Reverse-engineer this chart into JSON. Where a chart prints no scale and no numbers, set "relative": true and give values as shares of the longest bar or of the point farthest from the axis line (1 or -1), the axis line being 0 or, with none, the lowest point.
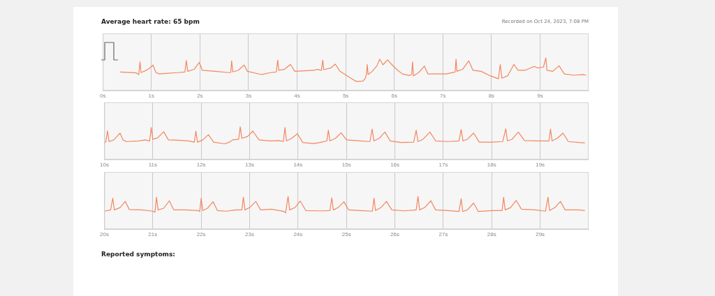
{
  "chart_data": [
    {
      "type": "line",
      "title": "Average heart rate: 65 bpm",
      "annotations": [
        "Recorded on Oct 24, 2023, 7:08 PM"
      ],
      "relative": true,
      "grid": "x",
      "color": "#f4865f",
      "xlim": [
        0,
        10
      ],
      "xticks": [
        {
          "value": 0,
          "label": "0s"
        },
        {
          "value": 1,
          "label": "1s"
        },
        {
          "value": 2,
          "label": "2s"
        },
        {
          "value": 3,
          "label": "3s"
        },
        {
          "value": 4,
          "label": "4s"
        },
        {
          "value": 5,
          "label": "5s"
        },
        {
          "value": 6,
          "label": "6s"
        },
        {
          "value": 7,
          "label": "7s"
        },
        {
          "value": 8,
          "label": "8s"
        },
        {
          "value": 9,
          "label": "9s"
        }
      ],
      "x": [
        0.357,
        0.69,
        0.74,
        0.767,
        0.786,
        0.88,
        0.967,
        1.033,
        1.095,
        1.167,
        1.357,
        1.548,
        1.69,
        1.719,
        1.748,
        1.88,
        1.986,
        2.048,
        2.31,
        2.595,
        2.633,
        2.652,
        2.676,
        2.786,
        2.91,
        2.976,
        3.262,
        3.452,
        3.571,
        3.6,
        3.624,
        3.738,
        3.862,
        3.952,
        4.357,
        4.405,
        4.5,
        4.529,
        4.548,
        4.69,
        4.786,
        4.881,
        5.071,
        5.214,
        5.357,
        5.405,
        5.429,
        5.443,
        5.462,
        5.548,
        5.643,
        5.7,
        5.767,
        5.862,
        5.952,
        6.071,
        6.167,
        6.31,
        6.357,
        6.376,
        6.395,
        6.5,
        6.619,
        6.69,
        6.833,
        7.071,
        7.252,
        7.271,
        7.29,
        7.405,
        7.533,
        7.619,
        7.786,
        7.976,
        8.143,
        8.181,
        8.214,
        8.333,
        8.462,
        8.548,
        8.69,
        8.881,
        8.952,
        9.071,
        9.119,
        9.143,
        9.262,
        9.39,
        9.5,
        9.69,
        9.881,
        9.952
      ],
      "values": [
        0.57,
        0.54,
        0.49,
        0.88,
        0.55,
        0.61,
        0.69,
        0.78,
        0.55,
        0.51,
        0.53,
        0.55,
        0.57,
        0.92,
        0.59,
        0.65,
        0.86,
        0.62,
        0.59,
        0.55,
        0.55,
        0.91,
        0.57,
        0.62,
        0.78,
        0.59,
        0.49,
        0.55,
        0.57,
        0.93,
        0.62,
        0.65,
        0.8,
        0.59,
        0.62,
        0.65,
        0.62,
        0.93,
        0.64,
        0.69,
        0.81,
        0.59,
        0.41,
        0.28,
        0.29,
        0.38,
        0.51,
        0.8,
        0.49,
        0.59,
        0.76,
        0.96,
        0.79,
        0.94,
        0.79,
        0.62,
        0.51,
        0.46,
        0.49,
        0.88,
        0.45,
        0.55,
        0.75,
        0.51,
        0.51,
        0.51,
        0.57,
        0.96,
        0.59,
        0.65,
        0.91,
        0.62,
        0.59,
        0.45,
        0.36,
        0.8,
        0.38,
        0.45,
        0.8,
        0.62,
        0.62,
        0.74,
        0.69,
        0.72,
        1.0,
        0.62,
        0.59,
        0.76,
        0.51,
        0.47,
        0.49,
        0.47
      ]
    },
    {
      "type": "line",
      "relative": true,
      "grid": "x",
      "color": "#f4865f",
      "xlim": [
        10,
        20
      ],
      "xticks": [
        {
          "value": 10,
          "label": "10s"
        },
        {
          "value": 11,
          "label": "11s"
        },
        {
          "value": 12,
          "label": "12s"
        },
        {
          "value": 13,
          "label": "13s"
        },
        {
          "value": 14,
          "label": "14s"
        },
        {
          "value": 15,
          "label": "15s"
        },
        {
          "value": 16,
          "label": "16s"
        },
        {
          "value": 17,
          "label": "17s"
        },
        {
          "value": 18,
          "label": "18s"
        },
        {
          "value": 19,
          "label": "19s"
        }
      ],
      "x": [
        10.0,
        10.032,
        10.065,
        10.097,
        10.194,
        10.323,
        10.387,
        10.452,
        10.71,
        10.839,
        10.935,
        10.968,
        11.0,
        11.097,
        11.226,
        11.323,
        11.548,
        11.742,
        11.858,
        11.89,
        11.923,
        12.032,
        12.148,
        12.258,
        12.484,
        12.581,
        12.645,
        12.774,
        12.806,
        12.839,
        12.955,
        13.065,
        13.194,
        13.419,
        13.613,
        13.697,
        13.729,
        13.761,
        13.871,
        13.987,
        14.097,
        14.323,
        14.452,
        14.594,
        14.626,
        14.658,
        14.774,
        14.89,
        15.0,
        15.29,
        15.484,
        15.529,
        15.568,
        15.677,
        15.794,
        15.903,
        16.129,
        16.387,
        16.439,
        16.477,
        16.581,
        16.723,
        16.839,
        17.097,
        17.323,
        17.368,
        17.406,
        17.497,
        17.626,
        17.742,
        18.0,
        18.226,
        18.29,
        18.323,
        18.419,
        18.548,
        18.677,
        18.968,
        19.181,
        19.213,
        19.245,
        19.355,
        19.471,
        19.581,
        19.806,
        19.923
      ],
      "values": [
        0.5,
        0.55,
        0.88,
        0.55,
        0.6,
        0.81,
        0.6,
        0.55,
        0.57,
        0.6,
        0.57,
        0.98,
        0.62,
        0.66,
        0.85,
        0.6,
        0.59,
        0.57,
        0.53,
        0.87,
        0.53,
        0.6,
        0.76,
        0.53,
        0.48,
        0.53,
        0.6,
        0.62,
        1.0,
        0.65,
        0.7,
        0.87,
        0.6,
        0.57,
        0.58,
        0.55,
        0.98,
        0.57,
        0.65,
        0.79,
        0.52,
        0.49,
        0.52,
        0.57,
        0.9,
        0.57,
        0.65,
        0.82,
        0.6,
        0.57,
        0.55,
        0.93,
        0.57,
        0.65,
        0.84,
        0.57,
        0.52,
        0.53,
        0.9,
        0.55,
        0.62,
        0.84,
        0.57,
        0.55,
        0.57,
        0.92,
        0.57,
        0.62,
        0.81,
        0.53,
        0.53,
        0.55,
        0.94,
        0.57,
        0.62,
        0.84,
        0.58,
        0.57,
        0.57,
        0.93,
        0.57,
        0.65,
        0.81,
        0.55,
        0.52,
        0.51
      ]
    },
    {
      "type": "line",
      "annotations": [
        "Reported symptoms:"
      ],
      "relative": true,
      "grid": "x",
      "color": "#f4865f",
      "xlim": [
        20,
        30
      ],
      "xticks": [
        {
          "value": 20,
          "label": "20s"
        },
        {
          "value": 21,
          "label": "21s"
        },
        {
          "value": 22,
          "label": "22s"
        },
        {
          "value": 23,
          "label": "23s"
        },
        {
          "value": 24,
          "label": "24s"
        },
        {
          "value": 25,
          "label": "25s"
        },
        {
          "value": 26,
          "label": "26s"
        },
        {
          "value": 27,
          "label": "27s"
        },
        {
          "value": 28,
          "label": "28s"
        },
        {
          "value": 29,
          "label": "29s"
        }
      ],
      "x": [
        20.0,
        20.129,
        20.174,
        20.206,
        20.323,
        20.432,
        20.516,
        20.774,
        21.0,
        21.045,
        21.077,
        21.11,
        21.226,
        21.342,
        21.432,
        21.677,
        21.935,
        21.968,
        22.0,
        22.032,
        22.129,
        22.245,
        22.335,
        22.516,
        22.71,
        22.839,
        22.871,
        22.903,
        23.0,
        23.129,
        23.226,
        23.452,
        23.71,
        23.742,
        23.794,
        23.826,
        23.935,
        24.045,
        24.161,
        24.452,
        24.658,
        24.697,
        24.729,
        24.826,
        24.948,
        25.045,
        25.29,
        25.535,
        25.568,
        25.6,
        25.71,
        25.826,
        25.935,
        26.194,
        26.439,
        26.477,
        26.51,
        26.613,
        26.742,
        26.839,
        27.097,
        27.323,
        27.368,
        27.4,
        27.497,
        27.626,
        27.723,
        28.0,
        28.213,
        28.245,
        28.277,
        28.387,
        28.503,
        28.613,
        28.903,
        29.11,
        29.161,
        29.194,
        29.303,
        29.419,
        29.516,
        29.806,
        29.923
      ],
      "values": [
        0.55,
        0.59,
        0.95,
        0.59,
        0.66,
        0.85,
        0.6,
        0.59,
        0.55,
        0.52,
        0.98,
        0.59,
        0.64,
        0.87,
        0.59,
        0.59,
        0.57,
        0.54,
        0.95,
        0.57,
        0.64,
        0.84,
        0.57,
        0.55,
        0.59,
        0.59,
        0.98,
        0.59,
        0.66,
        0.85,
        0.59,
        0.61,
        0.54,
        0.5,
        1.0,
        0.59,
        0.66,
        0.86,
        0.57,
        0.56,
        0.57,
        0.96,
        0.59,
        0.66,
        0.84,
        0.59,
        0.57,
        0.55,
        0.95,
        0.57,
        0.66,
        0.85,
        0.59,
        0.56,
        0.59,
        1.0,
        0.59,
        0.66,
        0.87,
        0.59,
        0.57,
        0.54,
        0.93,
        0.54,
        0.59,
        0.8,
        0.54,
        0.57,
        0.57,
        0.98,
        0.59,
        0.66,
        0.88,
        0.61,
        0.59,
        0.55,
        0.98,
        0.57,
        0.66,
        0.85,
        0.59,
        0.59,
        0.57
      ]
    }
  ]
}
